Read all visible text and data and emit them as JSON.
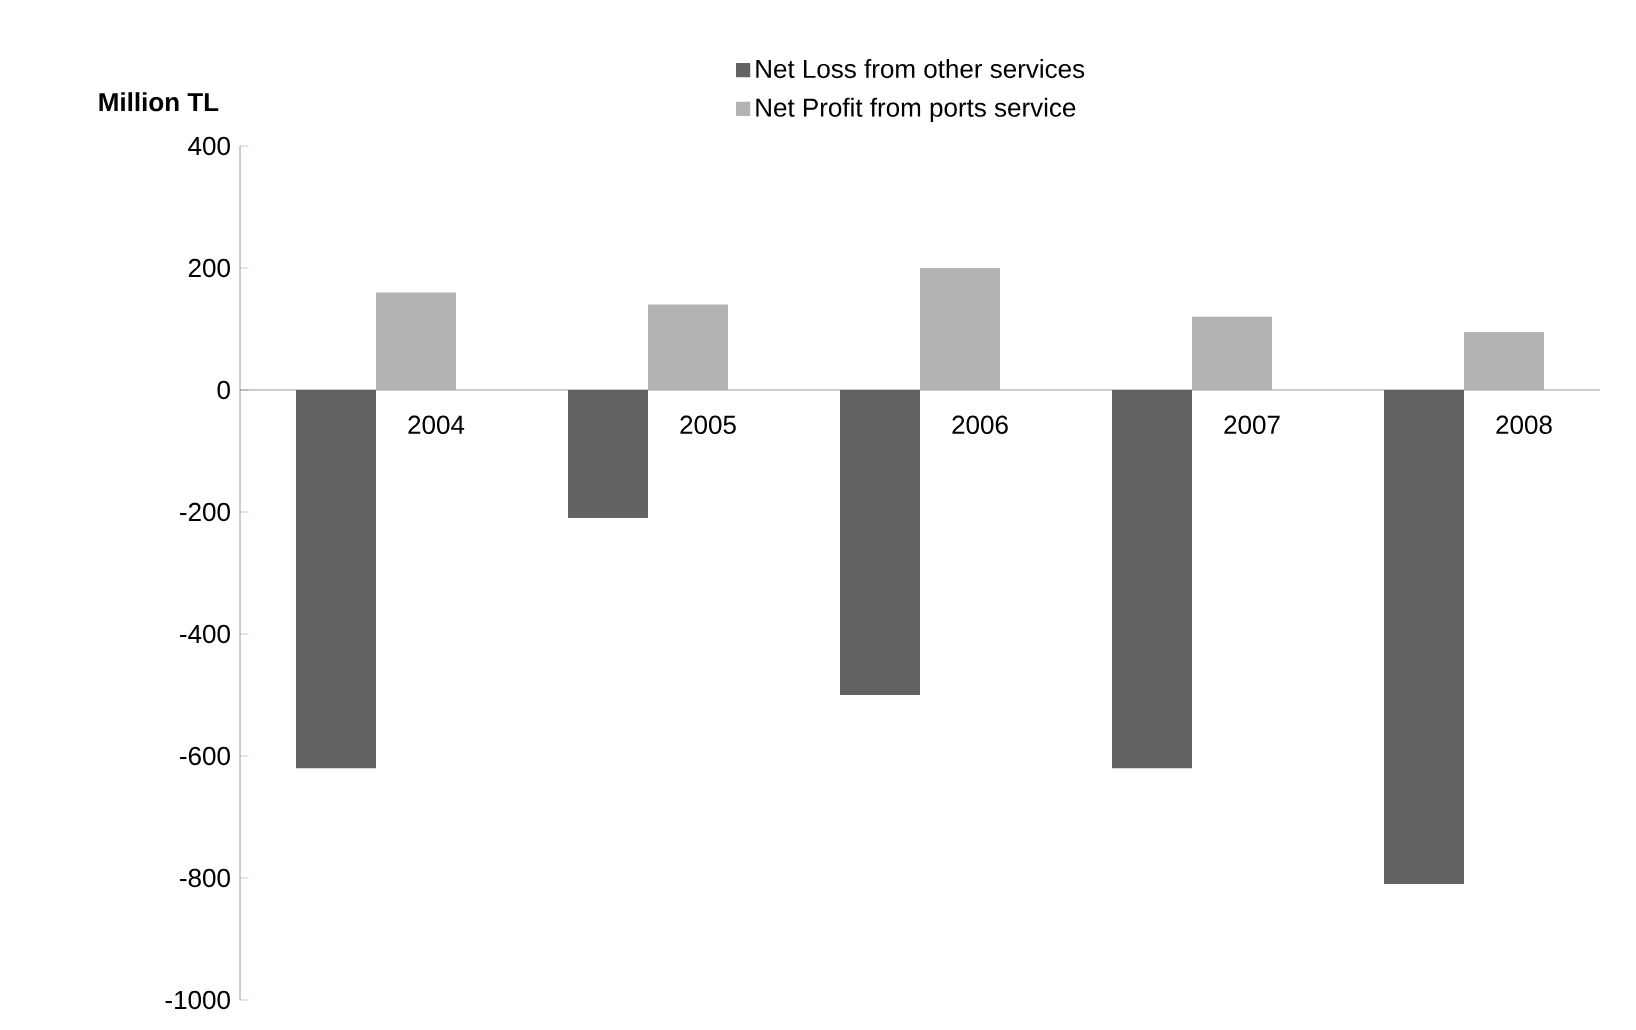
{
  "chart_data": {
    "type": "bar",
    "ylabel": "Million TL",
    "categories": [
      "2004",
      "2005",
      "2006",
      "2007",
      "2008"
    ],
    "series": [
      {
        "name": "Net Loss from other services",
        "color": "#636363",
        "values": [
          -620,
          -210,
          -500,
          -620,
          -810
        ]
      },
      {
        "name": "Net Profit from ports service",
        "color": "#b3b3b3",
        "values": [
          160,
          140,
          200,
          120,
          95
        ]
      }
    ],
    "ylim": [
      -1000,
      400
    ],
    "yticks": [
      -1000,
      -800,
      -600,
      -400,
      -200,
      0,
      200,
      400
    ],
    "grid": false,
    "legend": "top"
  }
}
